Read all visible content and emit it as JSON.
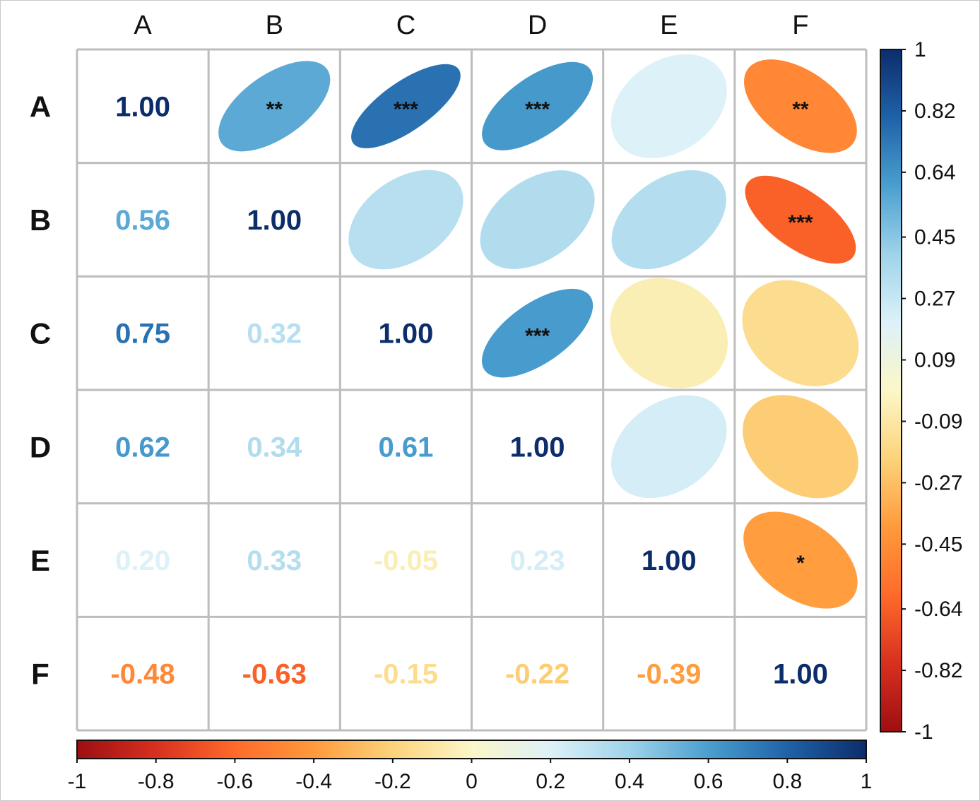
{
  "chart_data": {
    "type": "heatmap",
    "variables": [
      "A",
      "B",
      "C",
      "D",
      "E",
      "F"
    ],
    "matrix": [
      [
        1.0,
        0.56,
        0.75,
        0.62,
        0.2,
        -0.48
      ],
      [
        0.56,
        1.0,
        0.32,
        0.34,
        0.33,
        -0.63
      ],
      [
        0.75,
        0.32,
        1.0,
        0.61,
        -0.05,
        -0.15
      ],
      [
        0.62,
        0.34,
        0.61,
        1.0,
        0.23,
        -0.22
      ],
      [
        0.2,
        0.33,
        -0.05,
        0.23,
        1.0,
        -0.39
      ],
      [
        -0.48,
        -0.63,
        -0.15,
        -0.22,
        -0.39,
        1.0
      ]
    ],
    "lower_labels": [
      [
        "1.00",
        "",
        "",
        "",
        "",
        ""
      ],
      [
        "0.56",
        "1.00",
        "",
        "",
        "",
        ""
      ],
      [
        "0.75",
        "0.32",
        "1.00",
        "",
        "",
        ""
      ],
      [
        "0.62",
        "0.34",
        "0.61",
        "1.00",
        "",
        ""
      ],
      [
        "0.20",
        "0.33",
        "-0.05",
        "0.23",
        "1.00",
        ""
      ],
      [
        "-0.48",
        "-0.63",
        "-0.15",
        "-0.22",
        "-0.39",
        "1.00"
      ]
    ],
    "significance": [
      [
        "",
        "**",
        "***",
        "***",
        "",
        "**"
      ],
      [
        "",
        "",
        "",
        "",
        "",
        "***"
      ],
      [
        "",
        "",
        "",
        "***",
        "",
        ""
      ],
      [
        "",
        "",
        "",
        "",
        "",
        ""
      ],
      [
        "",
        "",
        "",
        "",
        "",
        "*"
      ],
      [
        "",
        "",
        "",
        "",
        "",
        ""
      ]
    ],
    "upper_glyph": "ellipse",
    "lower_glyph": "number",
    "color_range": [
      -1,
      1
    ],
    "colorbar_right": {
      "orientation": "vertical",
      "ticks": [
        "1",
        "0.82",
        "0.64",
        "0.45",
        "0.27",
        "0.09",
        "-0.09",
        "-0.27",
        "-0.45",
        "-0.64",
        "-0.82",
        "-1"
      ],
      "values": [
        1,
        0.82,
        0.64,
        0.45,
        0.27,
        0.09,
        -0.09,
        -0.27,
        -0.45,
        -0.64,
        -0.82,
        -1
      ]
    },
    "colorbar_bottom": {
      "orientation": "horizontal",
      "ticks": [
        "-1",
        "-0.8",
        "-0.6",
        "-0.4",
        "-0.2",
        "0",
        "0.2",
        "0.4",
        "0.6",
        "0.8",
        "1"
      ],
      "values": [
        -1,
        -0.8,
        -0.6,
        -0.4,
        -0.2,
        0,
        0.2,
        0.4,
        0.6,
        0.8,
        1
      ]
    },
    "grid": true
  },
  "colors": {
    "palette": [
      "#67001F",
      "#B2182B",
      "#D6604D",
      "#F4A582",
      "#FDDBC7",
      "#FFFFFF",
      "#D1E5F0",
      "#92C5DE",
      "#4393C3",
      "#2166AC",
      "#053061"
    ],
    "palette_display": [
      "#9E0E12",
      "#D7301F",
      "#FF6A2A",
      "#FF9A3C",
      "#FCD37A",
      "#FBF7C8",
      "#DDF1F8",
      "#9ED3EA",
      "#4A9FCF",
      "#1F62A8",
      "#0C2D6B"
    ],
    "grid": "#BDBDBD",
    "text": "#111111"
  }
}
